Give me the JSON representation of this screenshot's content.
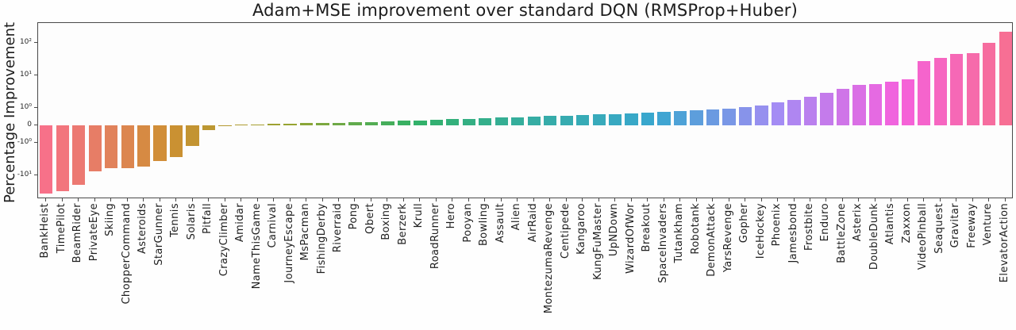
{
  "chart_data": {
    "type": "bar",
    "title": "Adam+MSE improvement over standard DQN (RMSProp+Huber)",
    "ylabel": "Percentage Improvement",
    "xlabel": "",
    "yscale": "symlog",
    "linthresh": 1,
    "ylim": [
      -55,
      400
    ],
    "grid": false,
    "legend": null,
    "yticks": [
      {
        "label": "10²",
        "value": 100
      },
      {
        "label": "10¹",
        "value": 10
      },
      {
        "label": "10⁰",
        "value": 1
      },
      {
        "label": "0",
        "value": 0
      },
      {
        "label": "-10⁰",
        "value": -1
      },
      {
        "label": "-10¹",
        "value": -10
      }
    ],
    "categories": [
      "BankHeist",
      "TimePilot",
      "BeamRider",
      "PrivateEye",
      "Skiing",
      "ChopperCommand",
      "Asteroids",
      "StarGunner",
      "Tennis",
      "Solaris",
      "Pitfall",
      "CrazyClimber",
      "Amidar",
      "NameThisGame",
      "Carnival",
      "JourneyEscape",
      "MsPacman",
      "FishingDerby",
      "Riverraid",
      "Pong",
      "Qbert",
      "Boxing",
      "Berzerk",
      "Krull",
      "RoadRunner",
      "Hero",
      "Pooyan",
      "Bowling",
      "Assault",
      "Alien",
      "AirRaid",
      "MontezumaRevenge",
      "Centipede",
      "Kangaroo",
      "KungFuMaster",
      "UpNDown",
      "WizardOfWor",
      "Breakout",
      "SpaceInvaders",
      "Tutankham",
      "Robotank",
      "DemonAttack",
      "YarsRevenge",
      "Gopher",
      "IceHockey",
      "Phoenix",
      "Jamesbond",
      "Frostbite",
      "Enduro",
      "BattleZone",
      "Asterix",
      "DoubleDunk",
      "Atlantis",
      "Zaxxon",
      "VideoPinball",
      "Seaquest",
      "Gravitar",
      "Freeway",
      "Venture",
      "ElevatorAction"
    ],
    "values": [
      -36,
      -30,
      -20,
      -7.6,
      -6.0,
      -5.9,
      -5.5,
      -3.6,
      -2.7,
      -1.25,
      -0.25,
      -0.05,
      0.04,
      0.06,
      0.08,
      0.1,
      0.12,
      0.14,
      0.16,
      0.18,
      0.2,
      0.23,
      0.26,
      0.29,
      0.32,
      0.35,
      0.38,
      0.41,
      0.44,
      0.47,
      0.5,
      0.53,
      0.56,
      0.59,
      0.62,
      0.65,
      0.68,
      0.72,
      0.76,
      0.8,
      0.85,
      0.9,
      0.95,
      1.05,
      1.2,
      1.5,
      1.8,
      2.2,
      2.9,
      3.8,
      5.0,
      5.5,
      6.5,
      7.5,
      28,
      35,
      45,
      48,
      100,
      220
    ],
    "palette": [
      "#f77189",
      "#f2757d",
      "#ec7972",
      "#e77d66",
      "#e1825b",
      "#dc864f",
      "#d68a43",
      "#d18e38",
      "#ca9132",
      "#c39432",
      "#bc9732",
      "#b49932",
      "#ad9c31",
      "#a69f31",
      "#9ea131",
      "#97a431",
      "#8aa638",
      "#7ca83f",
      "#6fa946",
      "#61ab4d",
      "#54ad54",
      "#46ae5b",
      "#39b062",
      "#32b16a",
      "#33b072",
      "#33b07b",
      "#34af83",
      "#34af8b",
      "#35ae93",
      "#35ae9c",
      "#36ada4",
      "#36acaa",
      "#37abb0",
      "#37abb6",
      "#38aabb",
      "#38a9c1",
      "#38a8c7",
      "#39a7cd",
      "#40a5d2",
      "#4ea2d7",
      "#5d9edc",
      "#6b9ae1",
      "#7997e6",
      "#8793ea",
      "#9690ef",
      "#a48cf4",
      "#af86f1",
      "#ba80ee",
      "#c47beb",
      "#cf75e8",
      "#da6fe5",
      "#e56ae2",
      "#f064de",
      "#f562d7",
      "#f564cc",
      "#f666c1",
      "#f668b6",
      "#f66bab",
      "#f66d9f",
      "#f76f94"
    ],
    "spine_color": "#4a4a4a",
    "background_color": "#ffffff"
  }
}
